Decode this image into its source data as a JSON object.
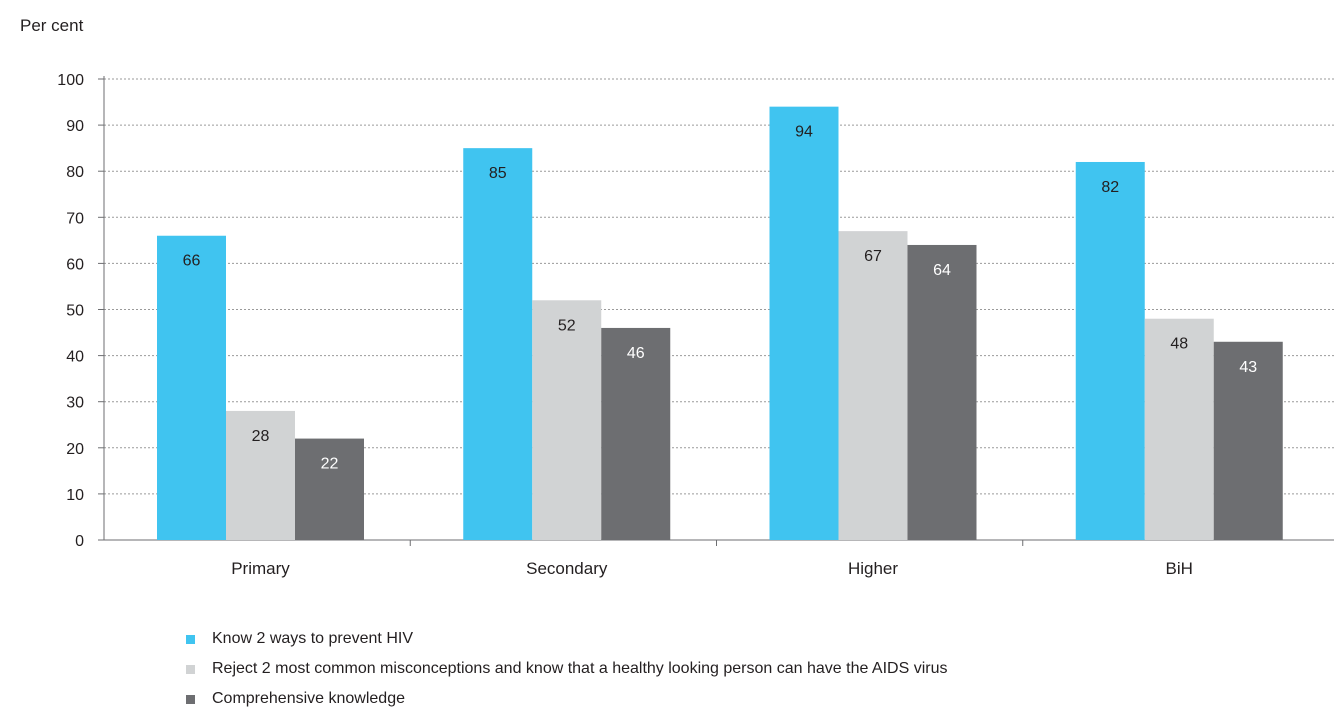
{
  "chart_data": {
    "type": "bar",
    "ylabel": "Per cent",
    "xlabel": "",
    "ylim": [
      0,
      100
    ],
    "yticks": [
      "0",
      "10",
      "20",
      "30",
      "40",
      "50",
      "60",
      "70",
      "80",
      "90",
      "100"
    ],
    "grid": true,
    "categories": [
      "Primary",
      "Secondary",
      "Higher",
      "BiH"
    ],
    "series": [
      {
        "name": "Know 2 ways to prevent HIV",
        "color": "#40c4f0",
        "values": [
          66,
          85,
          94,
          82
        ]
      },
      {
        "name": "Reject 2 most common misconceptions and know that a healthy looking person can have the AIDS virus",
        "color": "#d1d3d4",
        "values": [
          28,
          52,
          67,
          48
        ]
      },
      {
        "name": "Comprehensive knowledge",
        "color": "#6d6e71",
        "values": [
          22,
          46,
          64,
          43
        ]
      }
    ],
    "legend_position": "bottom"
  }
}
